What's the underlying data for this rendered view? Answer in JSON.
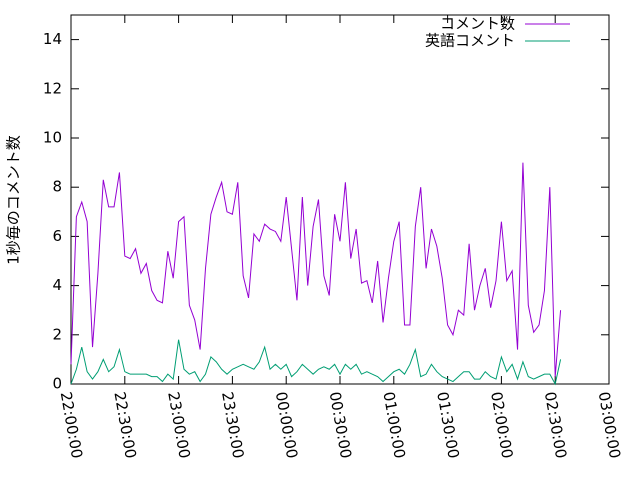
{
  "chart_data": {
    "type": "line",
    "y_label": "1秒毎のコメント数",
    "x": [
      "22:00:00",
      "22:03:00",
      "22:06:00",
      "22:09:00",
      "22:12:00",
      "22:15:00",
      "22:18:00",
      "22:21:00",
      "22:24:00",
      "22:27:00",
      "22:30:00",
      "22:33:00",
      "22:36:00",
      "22:39:00",
      "22:42:00",
      "22:45:00",
      "22:48:00",
      "22:51:00",
      "22:54:00",
      "22:57:00",
      "23:00:00",
      "23:03:00",
      "23:06:00",
      "23:09:00",
      "23:12:00",
      "23:15:00",
      "23:18:00",
      "23:21:00",
      "23:24:00",
      "23:27:00",
      "23:30:00",
      "23:33:00",
      "23:36:00",
      "23:39:00",
      "23:42:00",
      "23:45:00",
      "23:48:00",
      "23:51:00",
      "23:54:00",
      "23:57:00",
      "00:00:00",
      "00:03:00",
      "00:06:00",
      "00:09:00",
      "00:12:00",
      "00:15:00",
      "00:18:00",
      "00:21:00",
      "00:24:00",
      "00:27:00",
      "00:30:00",
      "00:33:00",
      "00:36:00",
      "00:39:00",
      "00:42:00",
      "00:45:00",
      "00:48:00",
      "00:51:00",
      "00:54:00",
      "00:57:00",
      "01:00:00",
      "01:03:00",
      "01:06:00",
      "01:09:00",
      "01:12:00",
      "01:15:00",
      "01:18:00",
      "01:21:00",
      "01:24:00",
      "01:27:00",
      "01:30:00",
      "01:33:00",
      "01:36:00",
      "01:39:00",
      "01:42:00",
      "01:45:00",
      "01:48:00",
      "01:51:00",
      "01:54:00",
      "01:57:00",
      "02:00:00",
      "02:03:00",
      "02:06:00",
      "02:09:00",
      "02:12:00",
      "02:15:00",
      "02:18:00",
      "02:21:00",
      "02:24:00",
      "02:27:00",
      "02:30:00",
      "02:33:00"
    ],
    "series": [
      {
        "name": "コメント数",
        "color": "#9400d3",
        "values": [
          0.8,
          6.8,
          7.4,
          6.6,
          1.5,
          4.5,
          8.3,
          7.2,
          7.2,
          8.6,
          5.2,
          5.1,
          5.5,
          4.5,
          4.9,
          3.8,
          3.4,
          3.3,
          5.4,
          4.3,
          6.6,
          6.8,
          3.2,
          2.6,
          1.4,
          4.7,
          6.9,
          7.6,
          8.2,
          7.0,
          6.9,
          8.2,
          4.4,
          3.5,
          6.1,
          5.8,
          6.5,
          6.3,
          6.2,
          5.8,
          7.6,
          5.5,
          3.4,
          7.6,
          4.0,
          6.4,
          7.5,
          4.4,
          3.6,
          6.9,
          5.8,
          8.2,
          5.1,
          6.3,
          4.1,
          4.2,
          3.3,
          5.0,
          2.5,
          4.3,
          5.8,
          6.6,
          2.4,
          2.4,
          6.4,
          8.0,
          4.7,
          6.3,
          5.6,
          4.3,
          2.4,
          2.0,
          3.0,
          2.8,
          5.7,
          3.0,
          4.0,
          4.7,
          3.1,
          4.2,
          6.6,
          4.2,
          4.6,
          1.4,
          9.0,
          3.2,
          2.1,
          2.4,
          3.8,
          8.0,
          0.3,
          3.0
        ]
      },
      {
        "name": "英語コメント",
        "color": "#009e73",
        "values": [
          0,
          0.6,
          1.5,
          0.5,
          0.2,
          0.5,
          1.0,
          0.5,
          0.7,
          1.4,
          0.5,
          0.4,
          0.4,
          0.4,
          0.4,
          0.3,
          0.3,
          0.1,
          0.4,
          0.2,
          1.8,
          0.6,
          0.4,
          0.5,
          0.1,
          0.4,
          1.1,
          0.9,
          0.6,
          0.4,
          0.6,
          0.7,
          0.8,
          0.7,
          0.6,
          0.9,
          1.5,
          0.6,
          0.8,
          0.6,
          0.8,
          0.3,
          0.5,
          0.8,
          0.6,
          0.4,
          0.6,
          0.7,
          0.6,
          0.8,
          0.4,
          0.8,
          0.6,
          0.8,
          0.4,
          0.5,
          0.4,
          0.3,
          0.1,
          0.3,
          0.5,
          0.6,
          0.4,
          0.8,
          1.4,
          0.3,
          0.4,
          0.8,
          0.5,
          0.3,
          0.2,
          0.1,
          0.3,
          0.5,
          0.5,
          0.2,
          0.2,
          0.5,
          0.3,
          0.2,
          1.1,
          0.5,
          0.8,
          0.2,
          0.9,
          0.3,
          0.2,
          0.3,
          0.4,
          0.4,
          0.0,
          1.0
        ]
      }
    ],
    "xlim": [
      "22:00:00",
      "03:00:00"
    ],
    "xticks": [
      "22:00:00",
      "22:30:00",
      "23:00:00",
      "23:30:00",
      "00:00:00",
      "00:30:00",
      "01:00:00",
      "01:30:00",
      "02:00:00",
      "02:30:00",
      "03:00:00"
    ],
    "ylim": [
      0,
      15
    ],
    "yticks": [
      0,
      2,
      4,
      6,
      8,
      10,
      12,
      14
    ],
    "legend": "upper right"
  }
}
